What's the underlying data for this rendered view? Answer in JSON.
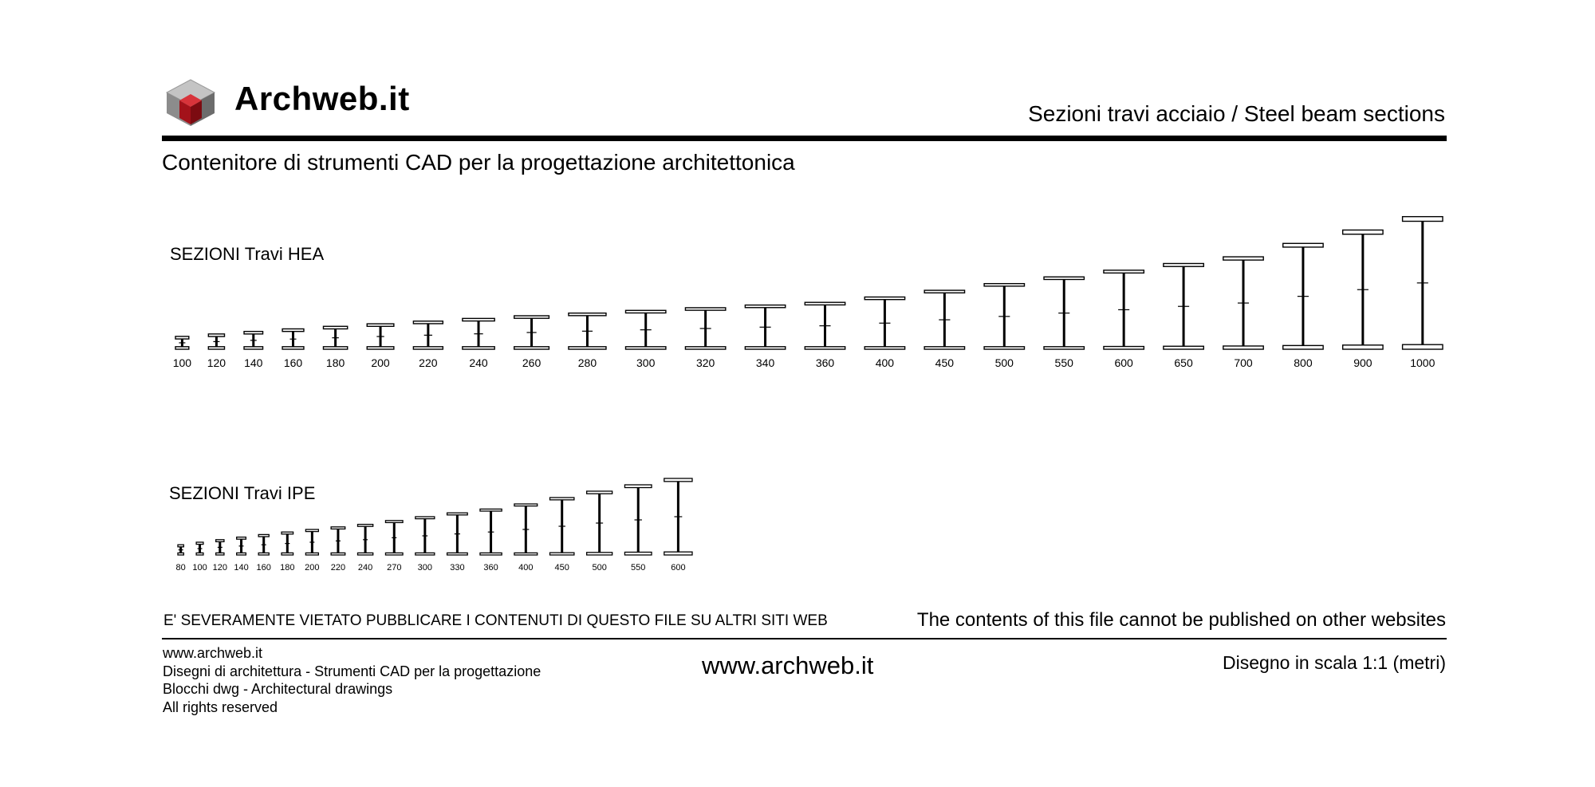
{
  "header": {
    "brand": "Archweb.it",
    "title": "Sezioni travi acciaio  /  Steel beam sections",
    "subtitle": "Contenitore di strumenti CAD per la progettazione architettonica"
  },
  "logo": {
    "icon": "cube-logo-icon",
    "colors": {
      "top": "#b9b9b9",
      "left": "#8a8a8a",
      "right": "#6e6e6e",
      "core": "#b3141b"
    }
  },
  "hea": {
    "title": "SEZIONI Travi HEA",
    "profiles": [
      {
        "label": "100",
        "h": 96,
        "b": 100
      },
      {
        "label": "120",
        "h": 114,
        "b": 120
      },
      {
        "label": "140",
        "h": 133,
        "b": 140
      },
      {
        "label": "160",
        "h": 152,
        "b": 160
      },
      {
        "label": "180",
        "h": 171,
        "b": 180
      },
      {
        "label": "200",
        "h": 190,
        "b": 200
      },
      {
        "label": "220",
        "h": 210,
        "b": 220
      },
      {
        "label": "240",
        "h": 230,
        "b": 240
      },
      {
        "label": "260",
        "h": 250,
        "b": 260
      },
      {
        "label": "280",
        "h": 270,
        "b": 280
      },
      {
        "label": "300",
        "h": 290,
        "b": 300
      },
      {
        "label": "320",
        "h": 310,
        "b": 300
      },
      {
        "label": "340",
        "h": 330,
        "b": 300
      },
      {
        "label": "360",
        "h": 350,
        "b": 300
      },
      {
        "label": "400",
        "h": 390,
        "b": 300
      },
      {
        "label": "450",
        "h": 440,
        "b": 300
      },
      {
        "label": "500",
        "h": 490,
        "b": 300
      },
      {
        "label": "550",
        "h": 540,
        "b": 300
      },
      {
        "label": "600",
        "h": 590,
        "b": 300
      },
      {
        "label": "650",
        "h": 640,
        "b": 300
      },
      {
        "label": "700",
        "h": 690,
        "b": 300
      },
      {
        "label": "800",
        "h": 790,
        "b": 300
      },
      {
        "label": "900",
        "h": 890,
        "b": 300
      },
      {
        "label": "1000",
        "h": 990,
        "b": 300
      }
    ]
  },
  "ipe": {
    "title": "SEZIONI Travi IPE",
    "profiles": [
      {
        "label": "80",
        "h": 80,
        "b": 46
      },
      {
        "label": "100",
        "h": 100,
        "b": 55
      },
      {
        "label": "120",
        "h": 120,
        "b": 64
      },
      {
        "label": "140",
        "h": 140,
        "b": 73
      },
      {
        "label": "160",
        "h": 160,
        "b": 82
      },
      {
        "label": "180",
        "h": 180,
        "b": 91
      },
      {
        "label": "200",
        "h": 200,
        "b": 100
      },
      {
        "label": "220",
        "h": 220,
        "b": 110
      },
      {
        "label": "240",
        "h": 240,
        "b": 120
      },
      {
        "label": "270",
        "h": 270,
        "b": 135
      },
      {
        "label": "300",
        "h": 300,
        "b": 150
      },
      {
        "label": "330",
        "h": 330,
        "b": 160
      },
      {
        "label": "360",
        "h": 360,
        "b": 170
      },
      {
        "label": "400",
        "h": 400,
        "b": 180
      },
      {
        "label": "450",
        "h": 450,
        "b": 190
      },
      {
        "label": "500",
        "h": 500,
        "b": 200
      },
      {
        "label": "550",
        "h": 550,
        "b": 210
      },
      {
        "label": "600",
        "h": 600,
        "b": 220
      }
    ]
  },
  "notice": {
    "italian": "E' SEVERAMENTE VIETATO PUBBLICARE I CONTENUTI DI QUESTO FILE SU ALTRI SITI WEB",
    "english": "The contents of this file cannot be published on other websites"
  },
  "footer": {
    "lines": [
      "www.archweb.it",
      "Disegni di architettura - Strumenti CAD  per la progettazione",
      "Blocchi dwg - Architectural drawings",
      "All rights reserved"
    ],
    "center": "www.archweb.it",
    "scale": "Disegno in scala 1:1 (metri)"
  }
}
